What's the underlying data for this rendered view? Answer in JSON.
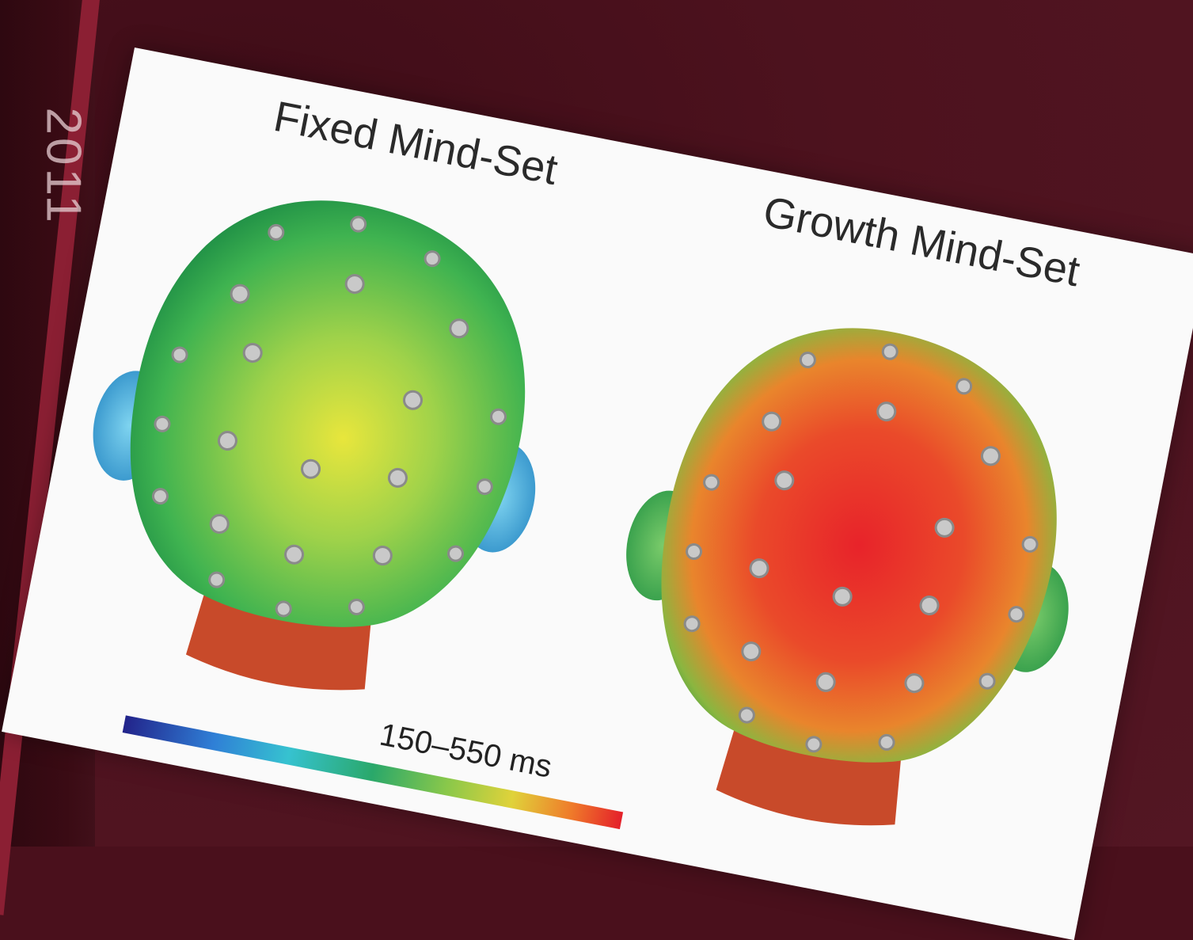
{
  "spine": {
    "text": "2011"
  },
  "figure": {
    "left_label": "Fixed Mind-Set",
    "right_label": "Growth Mind-Set",
    "colorbar_label": "150–550 ms"
  },
  "colors": {
    "background": "#4a101c",
    "spine_accent": "#8b1f33",
    "card": "#fafafa",
    "fixed_head_center": "#e8e23a",
    "fixed_head_edge": "#2aa84a",
    "growth_head_center": "#e8232a",
    "growth_head_edge": "#2aa84a",
    "ear_fixed": "#4cb8d8",
    "ear_growth": "#4aa84a",
    "electrode": "#c9c9c9"
  }
}
